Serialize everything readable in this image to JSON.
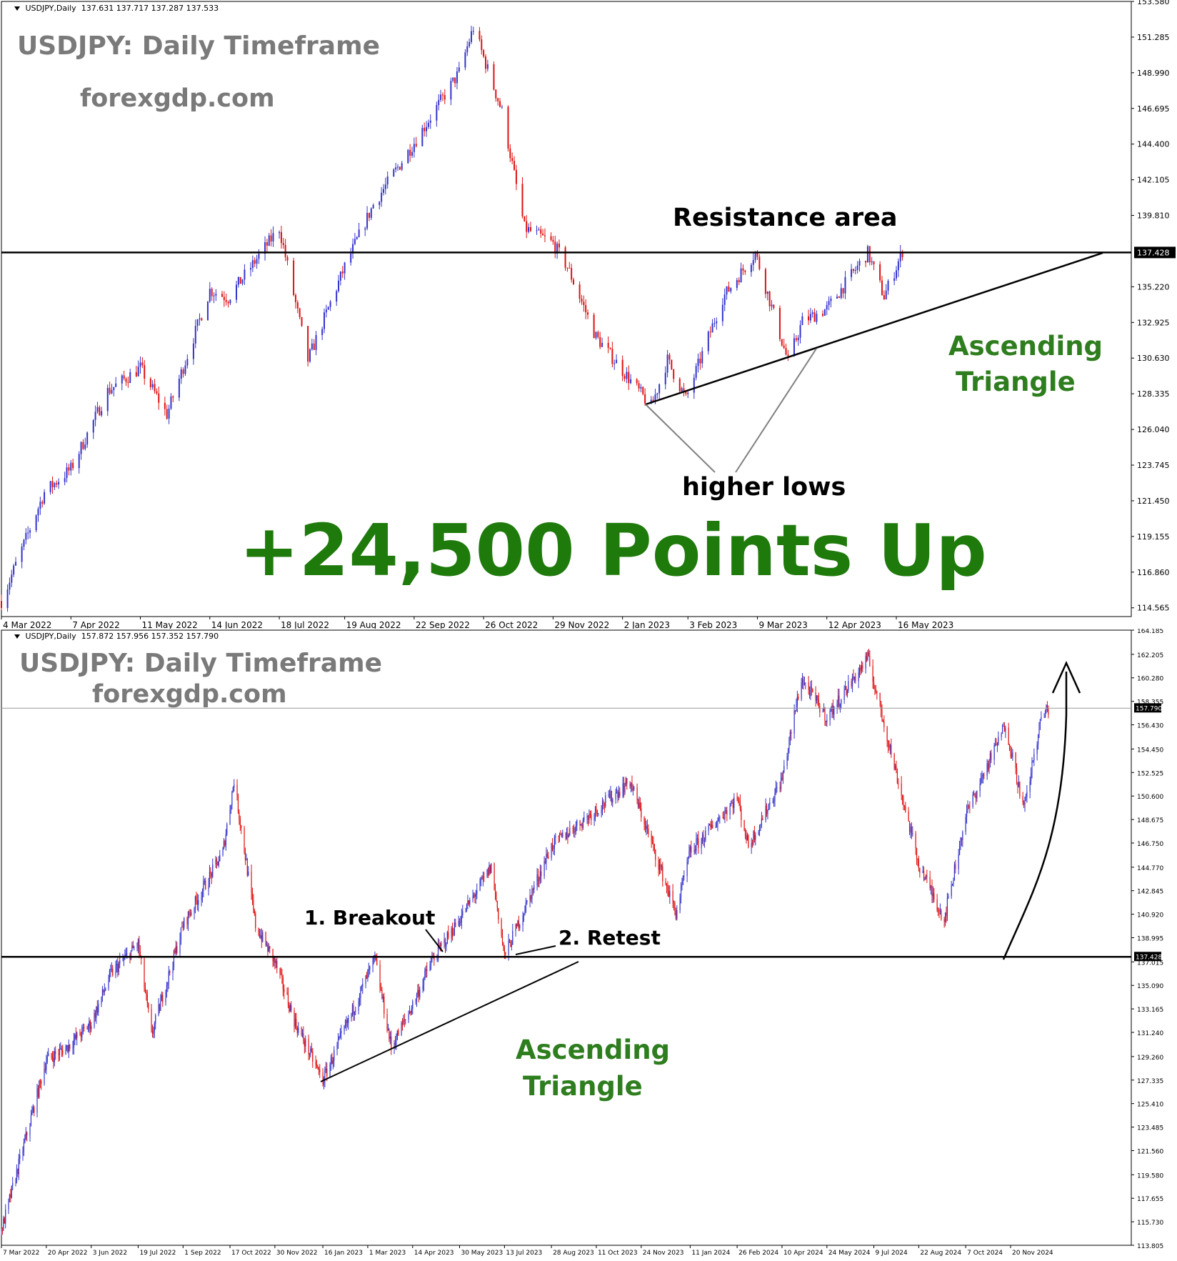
{
  "colors": {
    "bull": "#3333cc",
    "bear": "#e01010",
    "annotation_green": "#2e7d1e",
    "headline_green": "#1f7a0c",
    "title_gray": "#7a7a7a",
    "frame": "#000000"
  },
  "top": {
    "header_symbol": "USDJPY,Daily",
    "header_ohlc": "137.631 137.717 137.287 137.533",
    "title": "USDJPY: Daily Timeframe",
    "website": "forexgdp.com",
    "resistance_label": "Resistance area",
    "higher_lows_label": "higher lows",
    "pattern_line1": "Ascending",
    "pattern_line2": "Triangle",
    "headline": "+24,500 Points Up",
    "price_marker": "137.428"
  },
  "bottom": {
    "header_symbol": "USDJPY,Daily",
    "header_ohlc": "157.872 157.956 157.352 157.790",
    "title": "USDJPY: Daily Timeframe",
    "website": "forexgdp.com",
    "breakout_label": "1. Breakout",
    "retest_label": "2. Retest",
    "pattern_line1": "Ascending",
    "pattern_line2": "Triangle",
    "price_marker_current": "157.790",
    "price_marker_level": "137.428"
  },
  "chart_data": [
    {
      "type": "candlestick",
      "title": "USDJPY: Daily Timeframe",
      "timeframe": "Daily",
      "x_ticks": [
        "4 Mar 2022",
        "7 Apr 2022",
        "11 May 2022",
        "14 Jun 2022",
        "18 Jul 2022",
        "19 Aug 2022",
        "22 Sep 2022",
        "26 Oct 2022",
        "29 Nov 2022",
        "2 Jan 2023",
        "3 Feb 2023",
        "9 Mar 2023",
        "12 Apr 2023",
        "16 May 2023"
      ],
      "y_ticks": [
        "153.580",
        "151.285",
        "148.990",
        "146.695",
        "144.400",
        "142.105",
        "139.810",
        "137.428",
        "135.220",
        "132.925",
        "130.630",
        "128.335",
        "126.040",
        "123.745",
        "121.450",
        "119.155",
        "116.860",
        "114.565"
      ],
      "ylim": [
        114.0,
        153.58
      ],
      "resistance_level": 137.428,
      "path": [
        [
          "4 Mar 2022",
          115.0
        ],
        [
          "25 Mar 2022",
          122.0
        ],
        [
          "7 Apr 2022",
          123.5
        ],
        [
          "25 Apr 2022",
          128.5
        ],
        [
          "11 May 2022",
          130.0
        ],
        [
          "24 May 2022",
          127.0
        ],
        [
          "14 Jun 2022",
          135.0
        ],
        [
          "23 Jun 2022",
          134.5
        ],
        [
          "18 Jul 2022",
          139.0
        ],
        [
          "1 Aug 2022",
          130.5
        ],
        [
          "19 Aug 2022",
          136.5
        ],
        [
          "2 Sep 2022",
          140.5
        ],
        [
          "22 Sep 2022",
          144.5
        ],
        [
          "14 Oct 2022",
          149.0
        ],
        [
          "21 Oct 2022",
          151.9
        ],
        [
          "4 Nov 2022",
          146.5
        ],
        [
          "15 Nov 2022",
          139.0
        ],
        [
          "29 Nov 2022",
          138.0
        ],
        [
          "6 Dec 2022",
          136.5
        ],
        [
          "20 Dec 2022",
          132.0
        ],
        [
          "16 Jan 2023",
          127.5
        ],
        [
          "24 Jan 2023",
          130.5
        ],
        [
          "2 Feb 2023",
          128.0
        ],
        [
          "20 Feb 2023",
          134.5
        ],
        [
          "8 Mar 2023",
          137.4
        ],
        [
          "24 Mar 2023",
          130.4
        ],
        [
          "31 Mar 2023",
          133.0
        ],
        [
          "12 Apr 2023",
          133.8
        ],
        [
          "2 May 2023",
          137.4
        ],
        [
          "10 May 2023",
          134.6
        ],
        [
          "16 May 2023",
          136.5
        ],
        [
          "19 May 2023",
          137.533
        ]
      ],
      "annotations": {
        "resistance_label": "Resistance area",
        "higher_lows": [
          127.2,
          131.0
        ],
        "pattern": "Ascending Triangle"
      }
    },
    {
      "type": "candlestick",
      "title": "USDJPY: Daily Timeframe",
      "timeframe": "Daily",
      "x_ticks": [
        "7 Mar 2022",
        "20 Apr 2022",
        "3 Jun 2022",
        "19 Jul 2022",
        "1 Sep 2022",
        "17 Oct 2022",
        "30 Nov 2022",
        "16 Jan 2023",
        "1 Mar 2023",
        "14 Apr 2023",
        "30 May 2023",
        "13 Jul 2023",
        "28 Aug 2023",
        "11 Oct 2023",
        "24 Nov 2023",
        "11 Jan 2024",
        "26 Feb 2024",
        "10 Apr 2024",
        "24 May 2024",
        "9 Jul 2024",
        "22 Aug 2024",
        "7 Oct 2024",
        "20 Nov 2024"
      ],
      "y_ticks": [
        "164.185",
        "162.205",
        "160.280",
        "158.355",
        "157.790",
        "156.430",
        "154.450",
        "152.525",
        "150.600",
        "148.675",
        "146.750",
        "144.770",
        "142.845",
        "140.920",
        "138.995",
        "137.428",
        "137.015",
        "135.090",
        "133.165",
        "131.240",
        "129.260",
        "127.335",
        "125.410",
        "123.485",
        "121.560",
        "119.580",
        "117.655",
        "115.730",
        "113.805"
      ],
      "ylim": [
        113.805,
        164.185
      ],
      "breakout_level": 137.428,
      "current_price": 157.79,
      "path": [
        [
          "7 Mar 2022",
          115.0
        ],
        [
          "20 Apr 2022",
          129.0
        ],
        [
          "10 May 2022",
          130.0
        ],
        [
          "3 Jun 2022",
          132.0
        ],
        [
          "22 Jun 2022",
          136.0
        ],
        [
          "19 Jul 2022",
          138.5
        ],
        [
          "1 Aug 2022",
          131.0
        ],
        [
          "1 Sep 2022",
          140.0
        ],
        [
          "10 Oct 2022",
          146.0
        ],
        [
          "21 Oct 2022",
          151.9
        ],
        [
          "11 Nov 2022",
          140.0
        ],
        [
          "30 Nov 2022",
          137.0
        ],
        [
          "20 Dec 2022",
          132.0
        ],
        [
          "16 Jan 2023",
          127.3
        ],
        [
          "8 Mar 2023",
          137.3
        ],
        [
          "24 Mar 2023",
          130.0
        ],
        [
          "14 Apr 2023",
          133.5
        ],
        [
          "2 May 2023",
          137.0
        ],
        [
          "30 May 2023",
          140.5
        ],
        [
          "30 Jun 2023",
          144.8
        ],
        [
          "13 Jul 2023",
          137.5
        ],
        [
          "28 Aug 2023",
          146.5
        ],
        [
          "11 Oct 2023",
          149.5
        ],
        [
          "13 Nov 2023",
          151.8
        ],
        [
          "28 Dec 2023",
          141.0
        ],
        [
          "11 Jan 2024",
          146.0
        ],
        [
          "26 Feb 2024",
          150.5
        ],
        [
          "8 Mar 2024",
          146.5
        ],
        [
          "10 Apr 2024",
          152.0
        ],
        [
          "29 Apr 2024",
          160.2
        ],
        [
          "24 May 2024",
          157.0
        ],
        [
          "3 Jul 2024",
          161.9
        ],
        [
          "22 Aug 2024",
          145.0
        ],
        [
          "16 Sep 2024",
          140.5
        ],
        [
          "7 Oct 2024",
          149.0
        ],
        [
          "15 Nov 2024",
          156.5
        ],
        [
          "3 Dec 2024",
          149.5
        ],
        [
          "20 Dec 2024",
          157.0
        ],
        [
          "27 Dec 2024",
          157.79
        ]
      ],
      "annotations": {
        "breakout_label": "1. Breakout",
        "retest_label": "2. Retest",
        "pattern": "Ascending Triangle"
      }
    }
  ]
}
